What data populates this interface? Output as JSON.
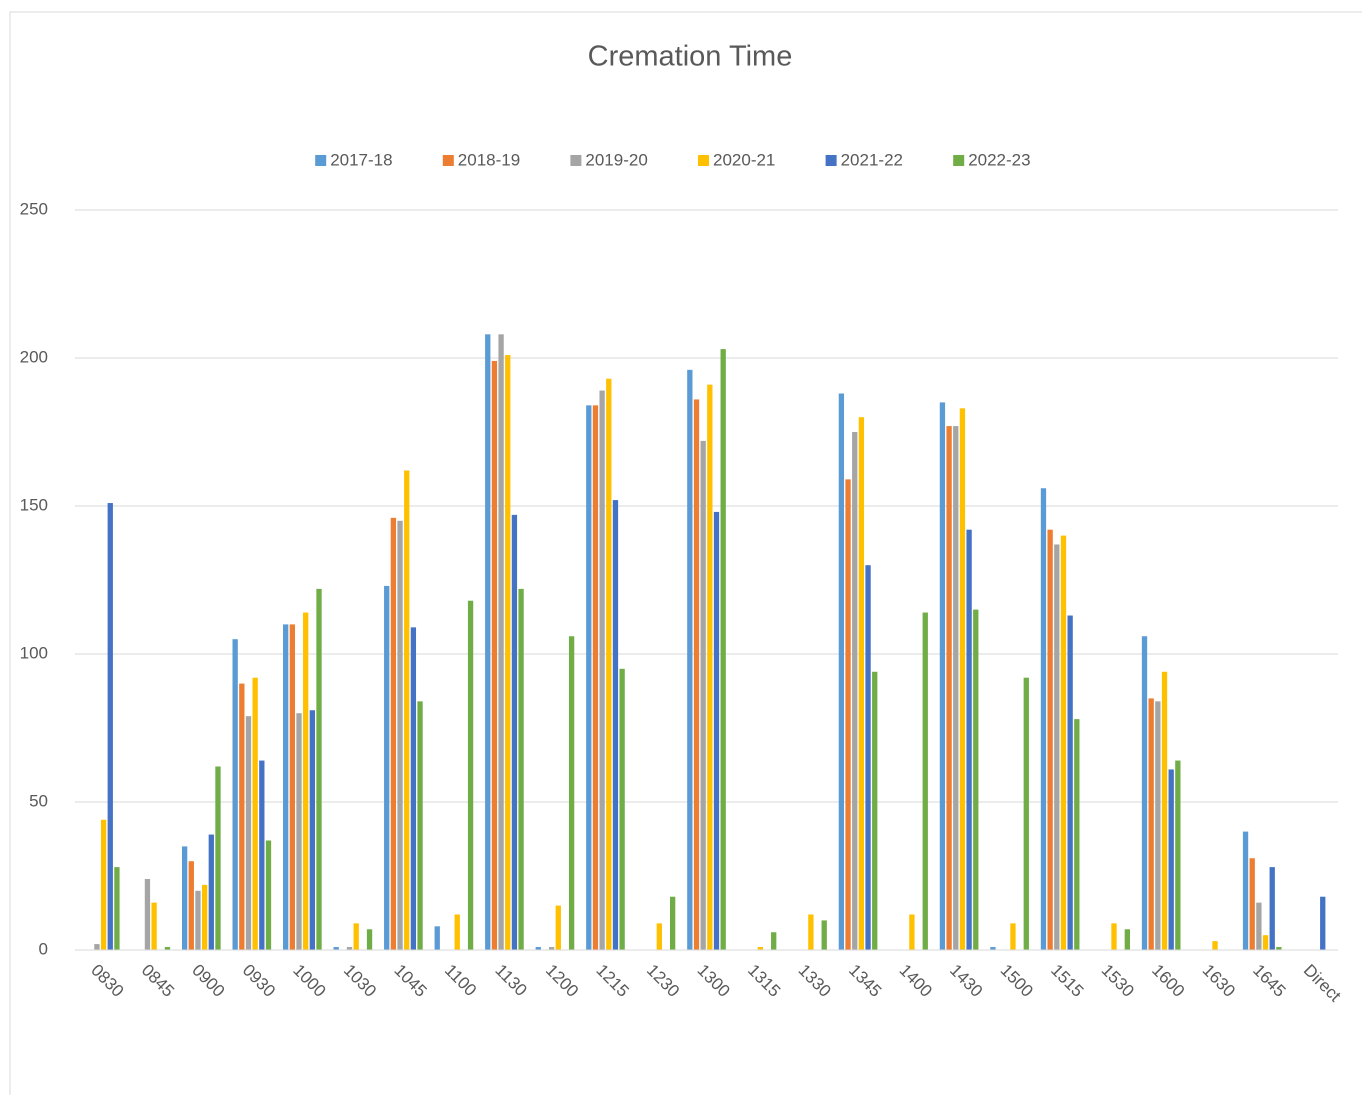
{
  "chart_data": {
    "type": "bar",
    "title": "Cremation Time",
    "categories": [
      "0830",
      "0845",
      "0900",
      "0930",
      "1000",
      "1030",
      "1045",
      "1100",
      "1130",
      "1200",
      "1215",
      "1230",
      "1300",
      "1315",
      "1330",
      "1345",
      "1400",
      "1430",
      "1500",
      "1515",
      "1530",
      "1600",
      "1630",
      "1645",
      "Direct"
    ],
    "series": [
      {
        "name": "2017-18",
        "color": "#5b9bd5",
        "values": [
          0,
          0,
          35,
          105,
          110,
          1,
          123,
          8,
          208,
          1,
          184,
          0,
          196,
          0,
          0,
          188,
          0,
          185,
          1,
          156,
          0,
          106,
          0,
          40,
          0
        ]
      },
      {
        "name": "2018-19",
        "color": "#ed7d31",
        "values": [
          0,
          0,
          30,
          90,
          110,
          0,
          146,
          0,
          199,
          0,
          184,
          0,
          186,
          0,
          0,
          159,
          0,
          177,
          0,
          142,
          0,
          85,
          0,
          31,
          0
        ]
      },
      {
        "name": "2019-20",
        "color": "#a5a5a5",
        "values": [
          2,
          24,
          20,
          79,
          80,
          1,
          145,
          0,
          208,
          1,
          189,
          0,
          172,
          0,
          0,
          175,
          0,
          177,
          0,
          137,
          0,
          84,
          0,
          16,
          0
        ]
      },
      {
        "name": "2020-21",
        "color": "#ffc000",
        "values": [
          44,
          16,
          22,
          92,
          114,
          9,
          162,
          12,
          201,
          15,
          193,
          9,
          191,
          1,
          12,
          180,
          12,
          183,
          9,
          140,
          9,
          94,
          3,
          5,
          0
        ]
      },
      {
        "name": "2021-22",
        "color": "#4472c4",
        "values": [
          151,
          0,
          39,
          64,
          81,
          0,
          109,
          0,
          147,
          0,
          152,
          0,
          148,
          0,
          0,
          130,
          0,
          142,
          0,
          113,
          0,
          61,
          0,
          28,
          18
        ]
      },
      {
        "name": "2022-23",
        "color": "#70ad47",
        "values": [
          28,
          1,
          62,
          37,
          122,
          7,
          84,
          118,
          122,
          106,
          95,
          18,
          203,
          6,
          10,
          94,
          114,
          115,
          92,
          78,
          7,
          64,
          0,
          1,
          0
        ]
      }
    ],
    "ylim": [
      0,
      250
    ],
    "yticks": [
      0,
      50,
      100,
      150,
      200,
      250
    ],
    "grid": true,
    "legend": "top"
  }
}
